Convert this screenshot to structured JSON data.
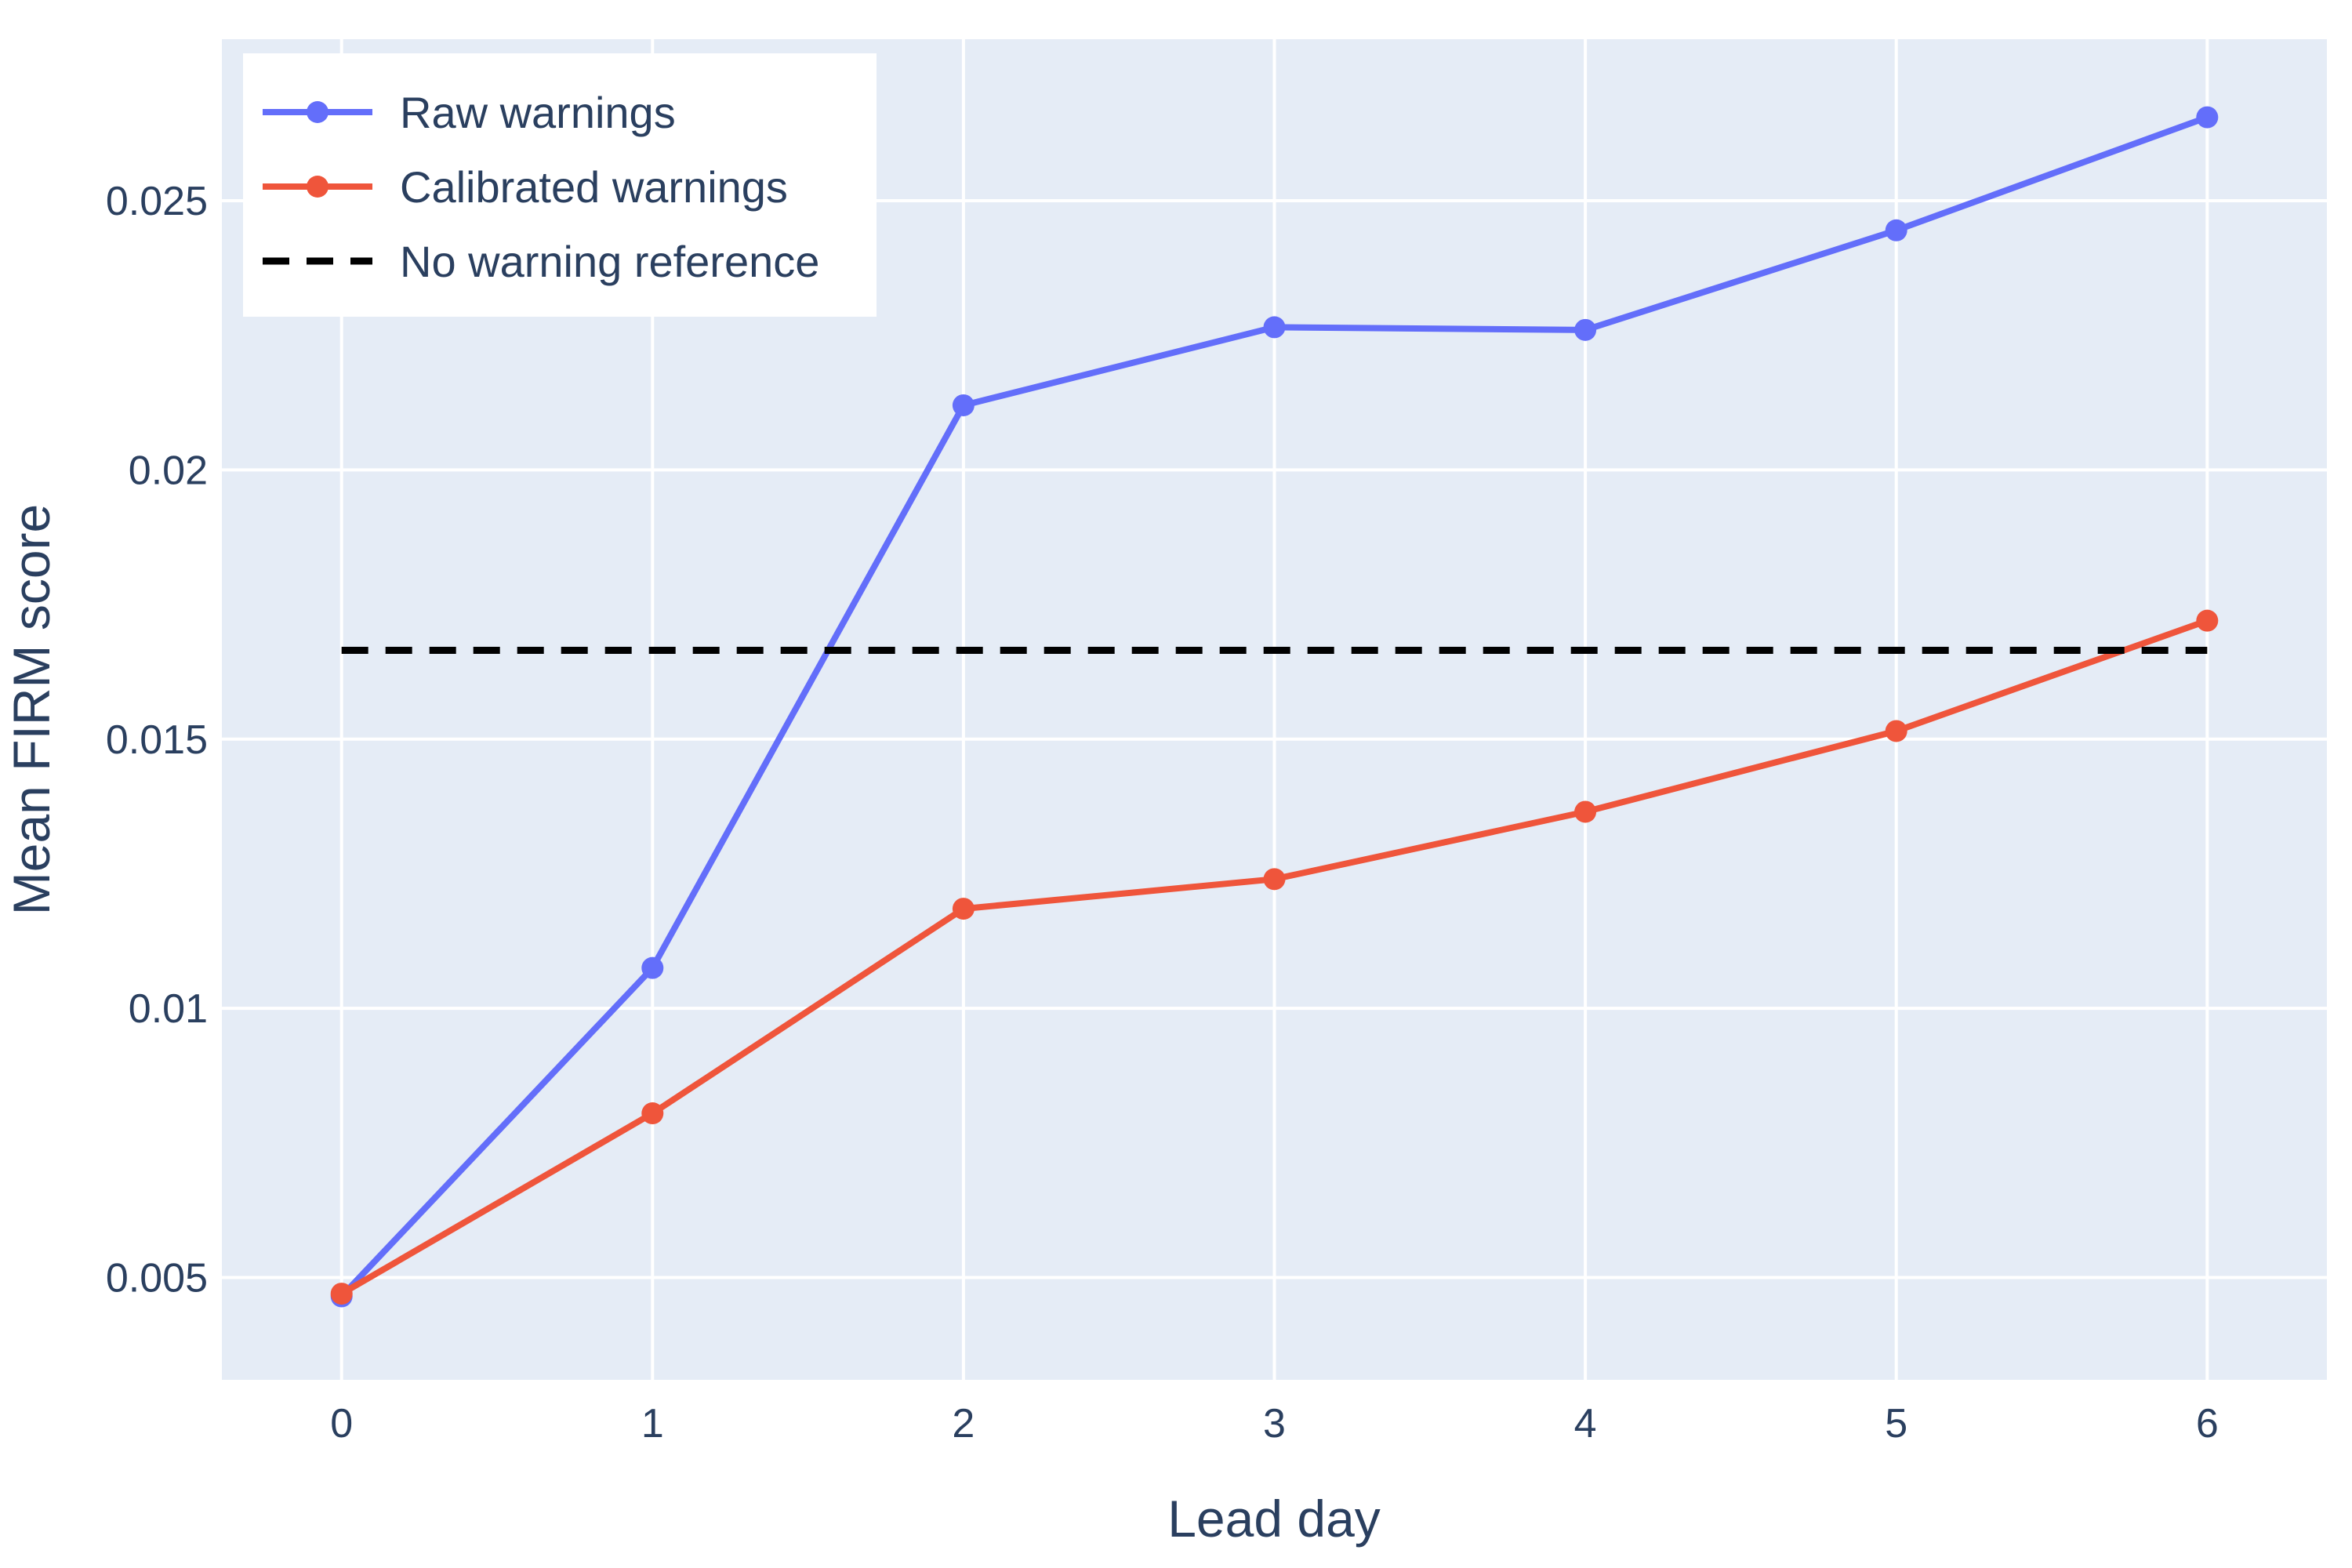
{
  "chart_data": {
    "type": "line",
    "xlabel": "Lead day",
    "ylabel": "Mean FIRM score",
    "x": [
      0,
      1,
      2,
      3,
      4,
      5,
      6
    ],
    "xlim": [
      -0.385,
      6.385
    ],
    "ylim": [
      0.0031,
      0.028
    ],
    "xticks": [
      0,
      1,
      2,
      3,
      4,
      5,
      6
    ],
    "yticks": [
      0.005,
      0.01,
      0.015,
      0.02,
      0.025
    ],
    "ytick_labels": [
      "0.005",
      "0.01",
      "0.015",
      "0.02",
      "0.025"
    ],
    "grid": true,
    "legend_position": "top-left",
    "series": [
      {
        "name": "Raw warnings",
        "color": "#636efa",
        "style": "solid",
        "markers": true,
        "values": [
          0.00465,
          0.01075,
          0.0212,
          0.02265,
          0.0226,
          0.02445,
          0.02655
        ]
      },
      {
        "name": "Calibrated warnings",
        "color": "#ef553b",
        "style": "solid",
        "markers": true,
        "values": [
          0.0047,
          0.00805,
          0.01185,
          0.0124,
          0.01365,
          0.01515,
          0.0172
        ]
      },
      {
        "name": "No warning reference",
        "color": "#000000",
        "style": "dash",
        "markers": false,
        "values": [
          0.01665,
          0.01665,
          0.01665,
          0.01665,
          0.01665,
          0.01665,
          0.01665
        ]
      }
    ],
    "plot_background": "#e5ecf6",
    "grid_color": "#ffffff",
    "text_color": "#2a3f5f"
  }
}
